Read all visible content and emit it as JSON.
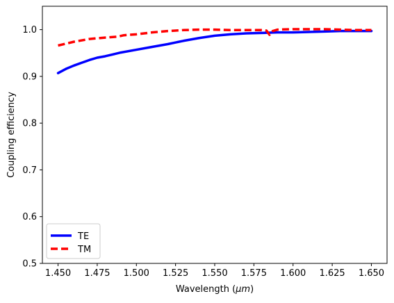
{
  "chart_data": {
    "type": "line",
    "xlabel_text": "Wavelength (",
    "xlabel_unit": "μm",
    "xlabel_close": ")",
    "ylabel": "Coupling efficiency",
    "xlim": [
      1.44,
      1.66
    ],
    "ylim": [
      0.5,
      1.05
    ],
    "xticks": [
      "1.450",
      "1.475",
      "1.500",
      "1.525",
      "1.550",
      "1.575",
      "1.600",
      "1.625",
      "1.650"
    ],
    "yticks": [
      "0.5",
      "0.6",
      "0.7",
      "0.8",
      "0.9",
      "1.0"
    ],
    "legend_position": "lower-left",
    "series": [
      {
        "name": "TE",
        "color": "#0000ff",
        "style": "solid",
        "x": [
          1.45,
          1.455,
          1.46,
          1.465,
          1.47,
          1.475,
          1.48,
          1.485,
          1.49,
          1.5,
          1.51,
          1.52,
          1.53,
          1.54,
          1.55,
          1.56,
          1.57,
          1.58,
          1.59,
          1.6,
          1.61,
          1.62,
          1.63,
          1.64,
          1.65
        ],
        "y": [
          0.907,
          0.916,
          0.923,
          0.929,
          0.935,
          0.94,
          0.943,
          0.947,
          0.951,
          0.957,
          0.963,
          0.969,
          0.976,
          0.982,
          0.987,
          0.99,
          0.992,
          0.993,
          0.994,
          0.994,
          0.995,
          0.996,
          0.997,
          0.997,
          0.997
        ]
      },
      {
        "name": "TM",
        "color": "#ff0000",
        "style": "dashed",
        "x": [
          1.45,
          1.46,
          1.47,
          1.48,
          1.488,
          1.492,
          1.5,
          1.51,
          1.52,
          1.53,
          1.54,
          1.55,
          1.56,
          1.57,
          1.58,
          1.583,
          1.585,
          1.587,
          1.59,
          1.6,
          1.61,
          1.62,
          1.63,
          1.64,
          1.65
        ],
        "y": [
          0.966,
          0.974,
          0.98,
          0.983,
          0.985,
          0.988,
          0.99,
          0.994,
          0.997,
          0.999,
          1.0,
          1.0,
          0.999,
          0.999,
          0.999,
          0.998,
          0.989,
          0.997,
          1.0,
          1.001,
          1.001,
          1.001,
          1.0,
          0.999,
          0.999
        ]
      }
    ]
  }
}
